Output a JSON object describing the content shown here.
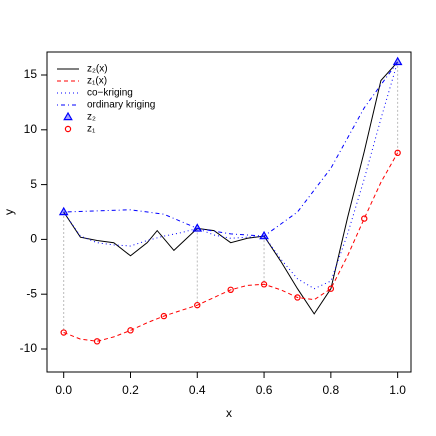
{
  "chart_data": {
    "type": "line",
    "xlabel": "x",
    "ylabel": "y",
    "xlim": [
      -0.05,
      1.04
    ],
    "ylim": [
      -12.1,
      17.1
    ],
    "xticks": [
      {
        "value": 0,
        "label": "0.0"
      },
      {
        "value": 0.2,
        "label": "0.2"
      },
      {
        "value": 0.4,
        "label": "0.4"
      },
      {
        "value": 0.6,
        "label": "0.6"
      },
      {
        "value": 0.8,
        "label": "0.8"
      },
      {
        "value": 1,
        "label": "1.0"
      }
    ],
    "yticks": [
      -10,
      -5,
      0,
      5,
      10,
      15
    ],
    "legend": "top-left",
    "series": [
      {
        "name": "z₂(x)",
        "color": "#000000",
        "style": "solid",
        "x": [
          0,
          0.05,
          0.1,
          0.15,
          0.2,
          0.25,
          0.28,
          0.33,
          0.4,
          0.45,
          0.5,
          0.55,
          0.6,
          0.65,
          0.7,
          0.75,
          0.8,
          0.85,
          0.9,
          0.95,
          1.0
        ],
        "values": [
          2.5,
          0.2,
          -0.1,
          -0.3,
          -1.5,
          -0.3,
          0.8,
          -1.0,
          1.0,
          0.8,
          -0.3,
          0.1,
          0.3,
          -2.0,
          -4.5,
          -6.8,
          -4.5,
          2.0,
          8.0,
          14.5,
          16.2
        ]
      },
      {
        "name": "z₁(x)",
        "color": "#ff0000",
        "style": "dashed",
        "x": [
          0,
          0.05,
          0.1,
          0.15,
          0.2,
          0.25,
          0.3,
          0.35,
          0.4,
          0.45,
          0.5,
          0.55,
          0.6,
          0.65,
          0.7,
          0.75,
          0.8,
          0.85,
          0.9,
          0.95,
          1.0
        ],
        "values": [
          -8.5,
          -9.1,
          -9.3,
          -8.9,
          -8.3,
          -7.6,
          -7.0,
          -6.5,
          -6.0,
          -5.3,
          -4.6,
          -4.2,
          -4.1,
          -4.6,
          -5.3,
          -5.5,
          -4.5,
          -1.5,
          1.9,
          5.2,
          7.9
        ]
      },
      {
        "name": "co−kriging",
        "color": "#0000ff",
        "style": "dotted",
        "x": [
          0,
          0.05,
          0.1,
          0.15,
          0.2,
          0.25,
          0.3,
          0.35,
          0.4,
          0.45,
          0.5,
          0.55,
          0.6,
          0.65,
          0.7,
          0.75,
          0.8,
          0.85,
          0.9,
          0.95,
          1.0
        ],
        "values": [
          2.5,
          0.3,
          -0.3,
          -0.5,
          -0.6,
          -0.1,
          0.3,
          0.6,
          1.0,
          0.4,
          0.1,
          0.2,
          0.3,
          -1.8,
          -3.6,
          -4.5,
          -3.8,
          0.5,
          5.5,
          11.0,
          16.2
        ]
      },
      {
        "name": "ordinary kriging",
        "color": "#0000ff",
        "style": "dashdot",
        "x": [
          0,
          0.1,
          0.2,
          0.3,
          0.4,
          0.5,
          0.6,
          0.7,
          0.8,
          0.9,
          1.0
        ],
        "values": [
          2.5,
          2.6,
          2.7,
          2.3,
          1.0,
          0.5,
          0.3,
          2.5,
          6.5,
          12.0,
          16.2
        ]
      },
      {
        "name": "z₂",
        "color": "#0000ff",
        "style": "points",
        "marker": "triangle",
        "x": [
          0,
          0.4,
          0.6,
          1.0
        ],
        "values": [
          2.5,
          1.0,
          0.3,
          16.2
        ]
      },
      {
        "name": "z₁",
        "color": "#ff0000",
        "style": "points",
        "marker": "circle",
        "x": [
          0,
          0.1,
          0.2,
          0.3,
          0.4,
          0.5,
          0.6,
          0.7,
          0.8,
          0.9,
          1.0
        ],
        "values": [
          -8.5,
          -9.3,
          -8.3,
          -7.0,
          -6.0,
          -4.6,
          -4.1,
          -5.3,
          -4.5,
          1.9,
          7.9
        ]
      }
    ]
  }
}
